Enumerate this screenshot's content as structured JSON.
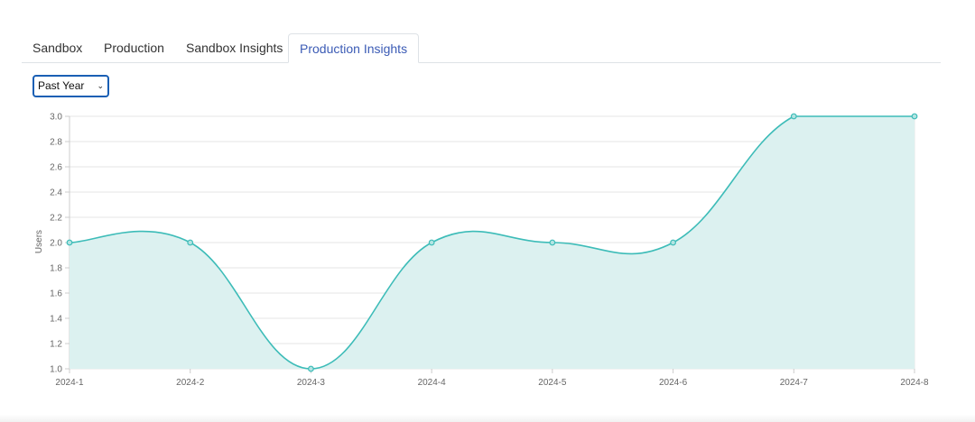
{
  "tabs": [
    {
      "label": "Sandbox",
      "active": false
    },
    {
      "label": "Production",
      "active": false
    },
    {
      "label": "Sandbox Insights",
      "active": false
    },
    {
      "label": "Production Insights",
      "active": true
    }
  ],
  "range_select": {
    "value": "Past Year"
  },
  "colors": {
    "line": "#3dbcb8",
    "fill": "#dcf1f0",
    "active_tab": "#3b5bb5"
  },
  "chart_data": {
    "type": "area",
    "categories": [
      "2024-1",
      "2024-2",
      "2024-3",
      "2024-4",
      "2024-5",
      "2024-6",
      "2024-7",
      "2024-8"
    ],
    "values": [
      2.0,
      2.0,
      1.0,
      2.0,
      2.0,
      2.0,
      3.0,
      3.0
    ],
    "ylabel": "Users",
    "ylim": [
      1.0,
      3.0
    ],
    "yticks": [
      "1.0",
      "1.2",
      "1.4",
      "1.6",
      "1.8",
      "2.0",
      "2.2",
      "2.4",
      "2.6",
      "2.8",
      "3.0"
    ],
    "grid": true,
    "legend": "none"
  }
}
